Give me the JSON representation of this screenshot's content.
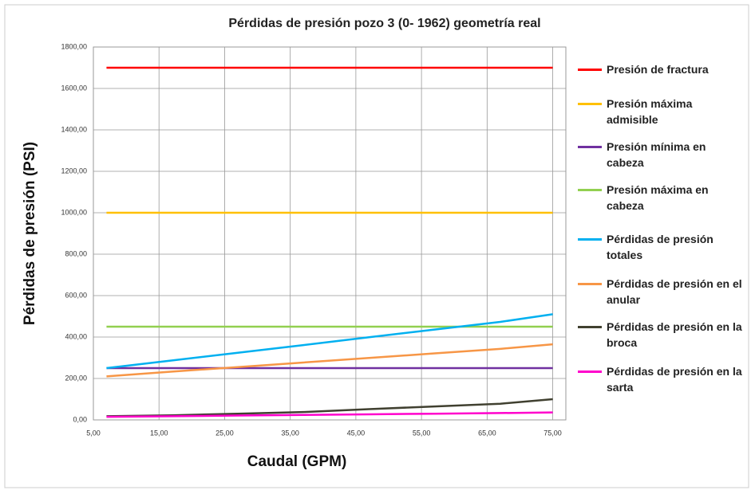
{
  "chart_data": {
    "type": "line",
    "title": "Pérdidas de presión pozo 3 (0- 1962) geometría real",
    "x_label": "Caudal (GPM)",
    "y_label": "Pérdidas de presión (PSI)",
    "x": [
      7,
      17,
      27,
      37,
      47,
      57,
      67,
      75
    ],
    "xlim": [
      5,
      77
    ],
    "xticks": [
      {
        "value": 5,
        "label": "5,00"
      },
      {
        "value": 15,
        "label": "15,00"
      },
      {
        "value": 25,
        "label": "25,00"
      },
      {
        "value": 35,
        "label": "35,00"
      },
      {
        "value": 45,
        "label": "45,00"
      },
      {
        "value": 55,
        "label": "55,00"
      },
      {
        "value": 65,
        "label": "65,00"
      },
      {
        "value": 75,
        "label": "75,00"
      }
    ],
    "ylim": [
      0,
      1800
    ],
    "yticks": [
      {
        "value": 0,
        "label": "0,00"
      },
      {
        "value": 200,
        "label": "200,00"
      },
      {
        "value": 400,
        "label": "400,00"
      },
      {
        "value": 600,
        "label": "600,00"
      },
      {
        "value": 800,
        "label": "800,00"
      },
      {
        "value": 1000,
        "label": "1000,00"
      },
      {
        "value": 1200,
        "label": "1200,00"
      },
      {
        "value": 1400,
        "label": "1400,00"
      },
      {
        "value": 1600,
        "label": "1600,00"
      },
      {
        "value": 1800,
        "label": "1800,00"
      }
    ],
    "grid": true,
    "legend": "right",
    "series": [
      {
        "name": "Presión de fractura",
        "color": "#ff0000",
        "values": [
          1700,
          1700,
          1700,
          1700,
          1700,
          1700,
          1700,
          1700
        ]
      },
      {
        "name": "Presión máxima admisible",
        "color": "#ffc000",
        "values": [
          1000,
          1000,
          1000,
          1000,
          1000,
          1000,
          1000,
          1000
        ]
      },
      {
        "name": "Presión mínima en cabeza",
        "color": "#7030a0",
        "values": [
          250,
          250,
          250,
          250,
          250,
          250,
          250,
          250
        ]
      },
      {
        "name": "Presión máxima en cabeza",
        "color": "#92d050",
        "values": [
          450,
          450,
          450,
          450,
          450,
          450,
          450,
          450
        ]
      },
      {
        "name": "Pérdidas de presión totales",
        "color": "#00b0f0",
        "values": [
          250,
          287,
          324,
          361,
          399,
          436,
          473,
          510
        ]
      },
      {
        "name": "Pérdidas de presión en el anular",
        "color": "#f79646",
        "values": [
          210,
          233,
          255,
          277,
          299,
          321,
          343,
          365
        ]
      },
      {
        "name": "Pérdidas de presión en la broca",
        "color": "#404030",
        "values": [
          18,
          22,
          30,
          38,
          52,
          65,
          78,
          100
        ]
      },
      {
        "name": "Pérdidas de presión en la sarta",
        "color": "#ff00cc",
        "values": [
          15,
          18,
          21,
          24,
          27,
          30,
          33,
          36
        ]
      }
    ]
  }
}
